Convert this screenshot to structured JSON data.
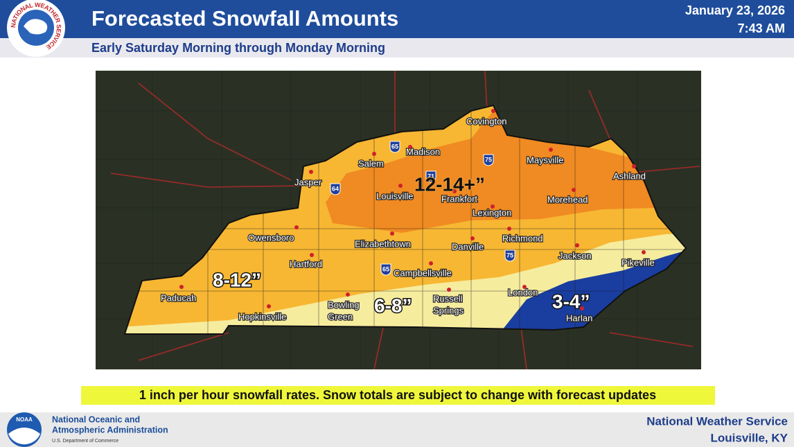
{
  "header": {
    "title": "Forecasted Snowfall Amounts",
    "subtitle": "Early Saturday Morning through Monday Morning",
    "date": "January 23, 2026",
    "time": "7:43 AM",
    "logo_ring": "NATIONAL WEATHER SERVICE"
  },
  "map": {
    "cities": [
      {
        "lines": [
          "Covington"
        ]
      },
      {
        "lines": [
          "Madison"
        ]
      },
      {
        "lines": [
          "Salem"
        ]
      },
      {
        "lines": [
          "Maysville"
        ]
      },
      {
        "lines": [
          "Ashland"
        ]
      },
      {
        "lines": [
          "Jasper"
        ]
      },
      {
        "lines": [
          "Louisville"
        ]
      },
      {
        "lines": [
          "Frankfort"
        ]
      },
      {
        "lines": [
          "Lexington"
        ]
      },
      {
        "lines": [
          "Morehead"
        ]
      },
      {
        "lines": [
          "Owensboro"
        ]
      },
      {
        "lines": [
          "Elizabethtown"
        ]
      },
      {
        "lines": [
          "Danville"
        ]
      },
      {
        "lines": [
          "Richmond"
        ]
      },
      {
        "lines": [
          "Hartford"
        ]
      },
      {
        "lines": [
          "Campbellsville"
        ]
      },
      {
        "lines": [
          "Jackson"
        ]
      },
      {
        "lines": [
          "Pikeville"
        ]
      },
      {
        "lines": [
          "Paducah"
        ]
      },
      {
        "lines": [
          "Bowling",
          "Green"
        ]
      },
      {
        "lines": [
          "Russell",
          "Springs"
        ]
      },
      {
        "lines": [
          "London"
        ]
      },
      {
        "lines": [
          "Harlan"
        ]
      },
      {
        "lines": [
          "Hopkinsville"
        ]
      }
    ],
    "amounts": [
      "12-14+”",
      "8-12”",
      "6-8”",
      "3-4”"
    ],
    "interstates": [
      "65",
      "71",
      "75",
      "64",
      "65",
      "75"
    ]
  },
  "note": "1 inch per hour snowfall rates. Snow totals are subject to change with forecast updates",
  "footer": {
    "noaa_logo": "NOAA",
    "noaa_lines": [
      "National Oceanic and",
      "Atmospheric Administration",
      "U.S. Department of Commerce"
    ],
    "nws_lines": [
      "National Weather Service",
      "Louisville, KY"
    ]
  }
}
